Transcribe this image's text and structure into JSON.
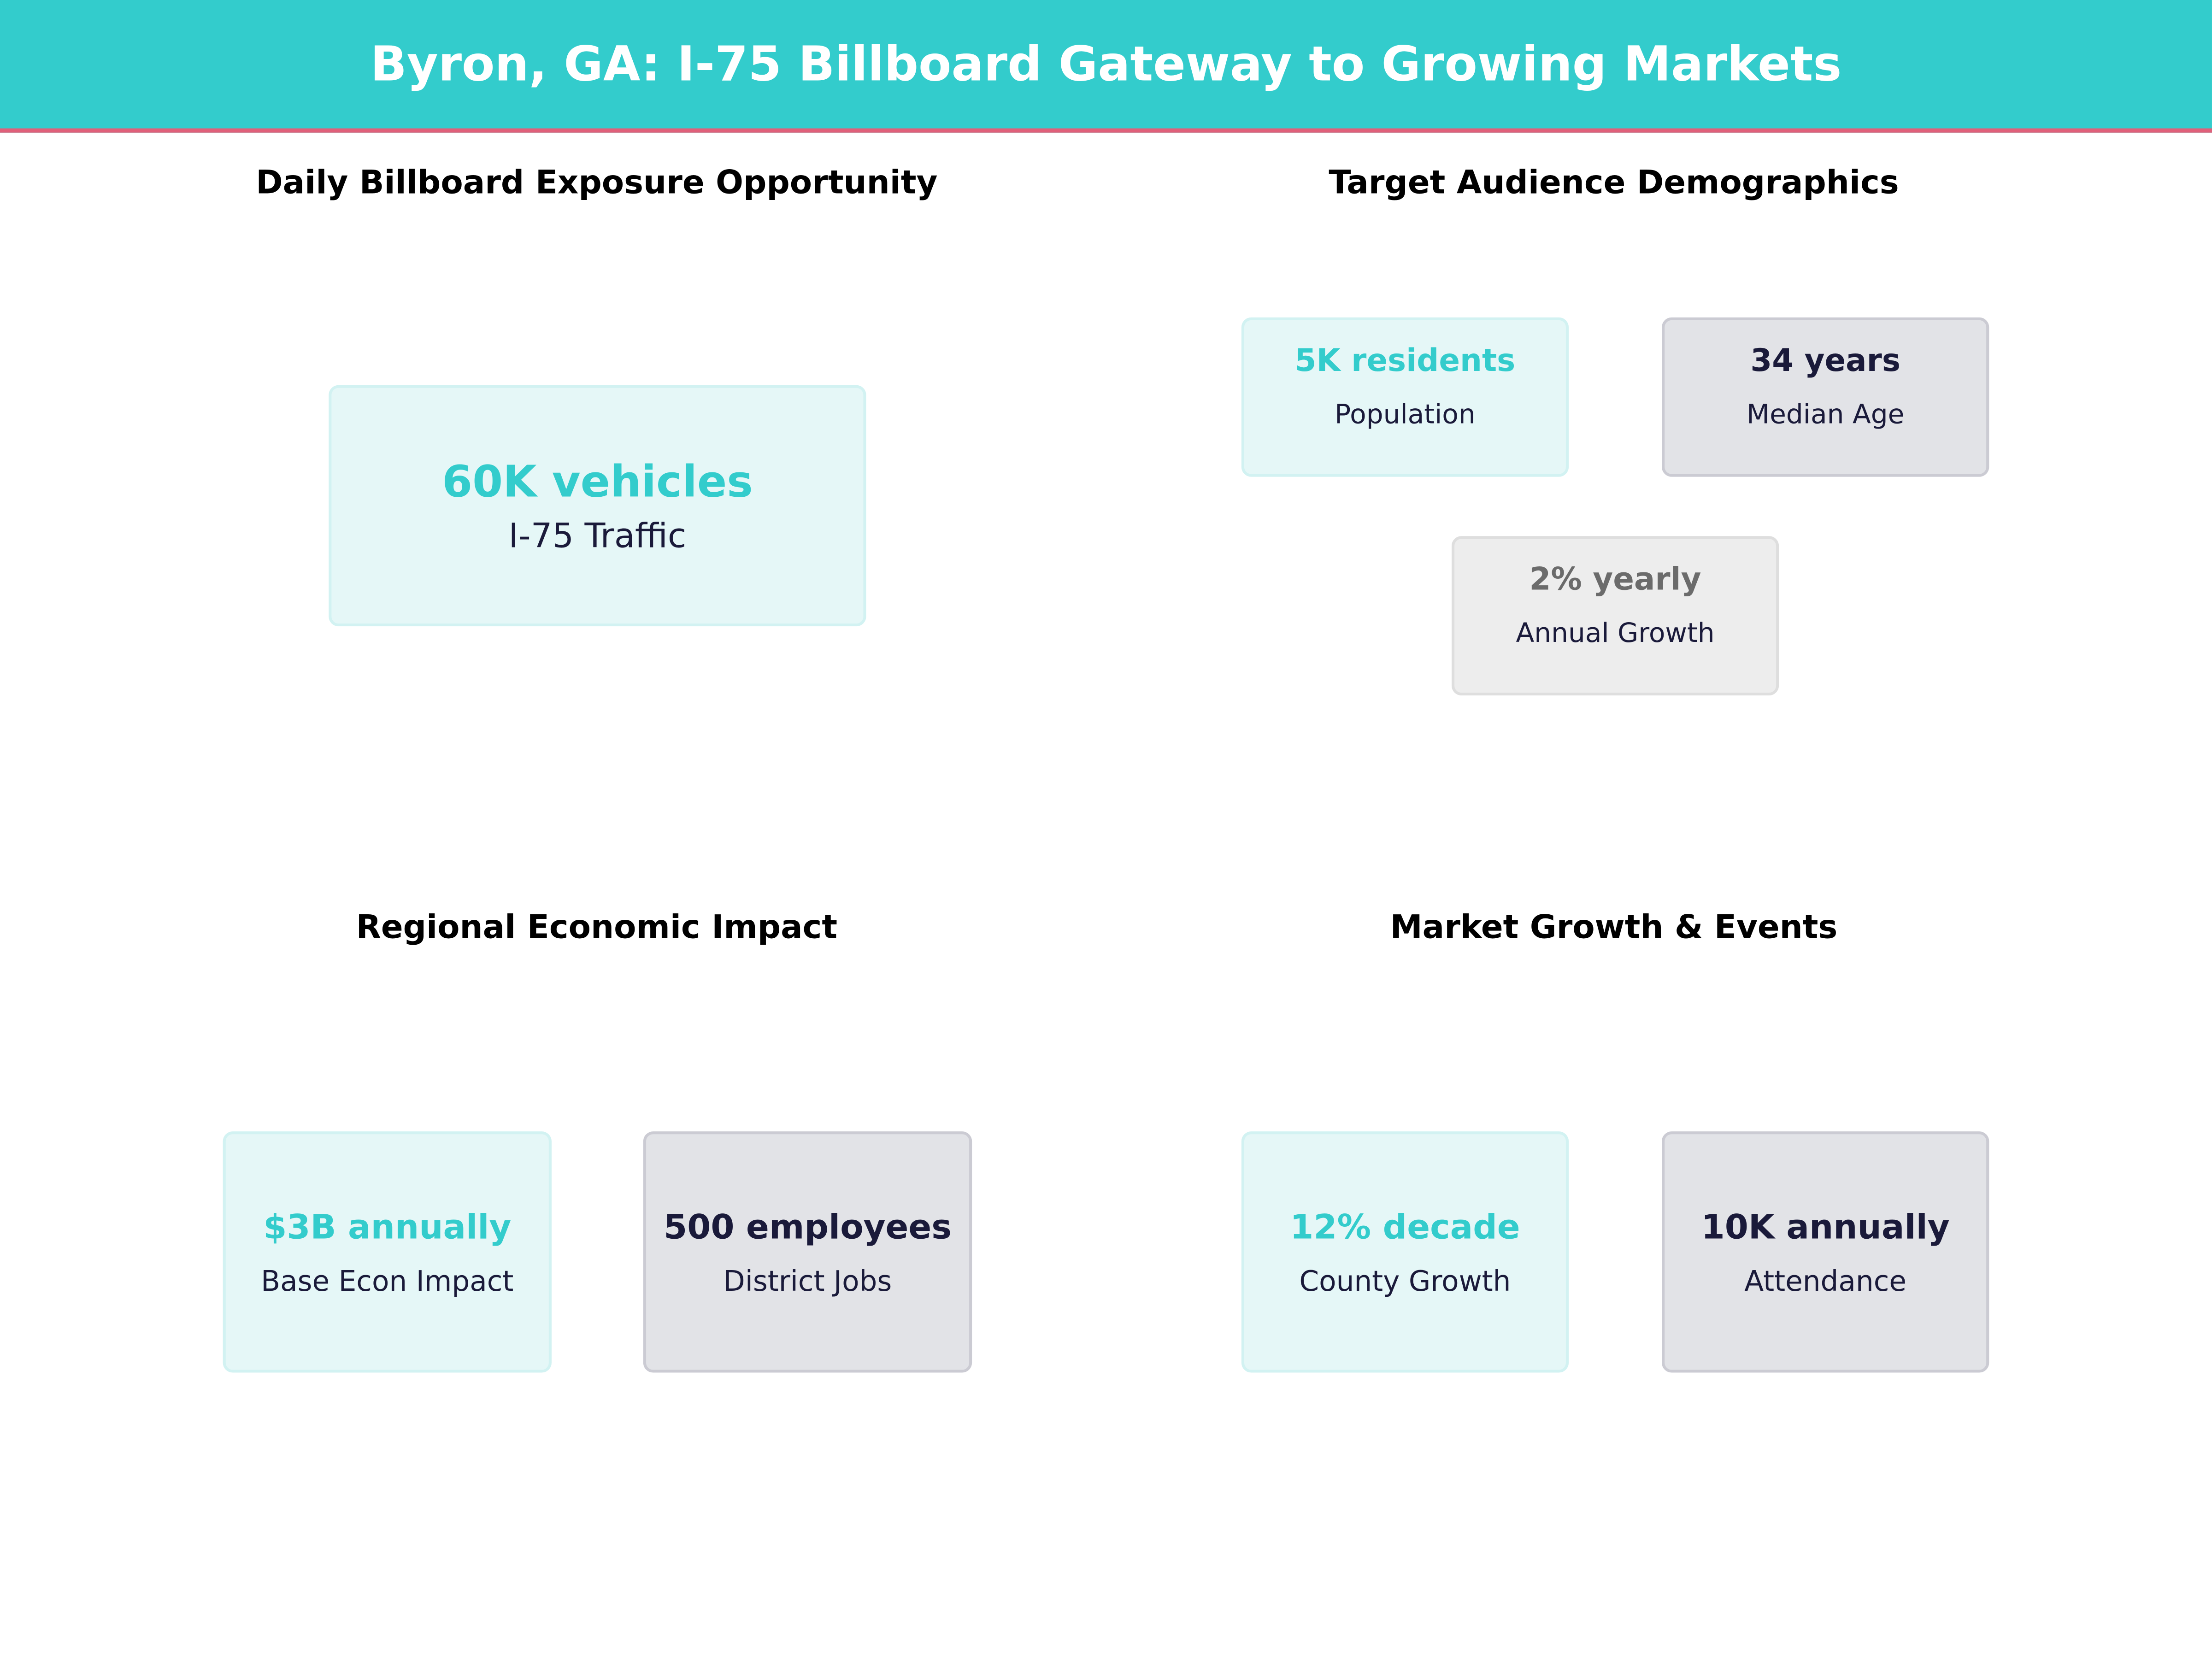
{
  "header": {
    "title": "Byron, GA: I-75 Billboard Gateway to Growing Markets"
  },
  "colors": {
    "accent": "#33CCCC",
    "header_rule": "#E0607A",
    "navy": "#1A1A3A",
    "grey": "#6B6B6B"
  },
  "panels": [
    {
      "title": "Daily Billboard Exposure Opportunity",
      "cards": [
        {
          "value": "60K vehicles",
          "label": "I-75 Traffic",
          "style": "teal"
        }
      ]
    },
    {
      "title": "Target Audience Demographics",
      "cards": [
        {
          "value": "5K residents",
          "label": "Population",
          "style": "teal"
        },
        {
          "value": "34 years",
          "label": "Median Age",
          "style": "navy"
        },
        {
          "value": "2% yearly",
          "label": "Annual Growth",
          "style": "grey"
        }
      ]
    },
    {
      "title": "Regional Economic Impact",
      "cards": [
        {
          "value": "$3B annually",
          "label": "Base Econ Impact",
          "style": "teal"
        },
        {
          "value": "500 employees",
          "label": "District Jobs",
          "style": "navy"
        }
      ]
    },
    {
      "title": "Market Growth & Events",
      "cards": [
        {
          "value": "12% decade",
          "label": "County Growth",
          "style": "teal"
        },
        {
          "value": "10K annually",
          "label": "Attendance",
          "style": "navy"
        }
      ]
    }
  ]
}
